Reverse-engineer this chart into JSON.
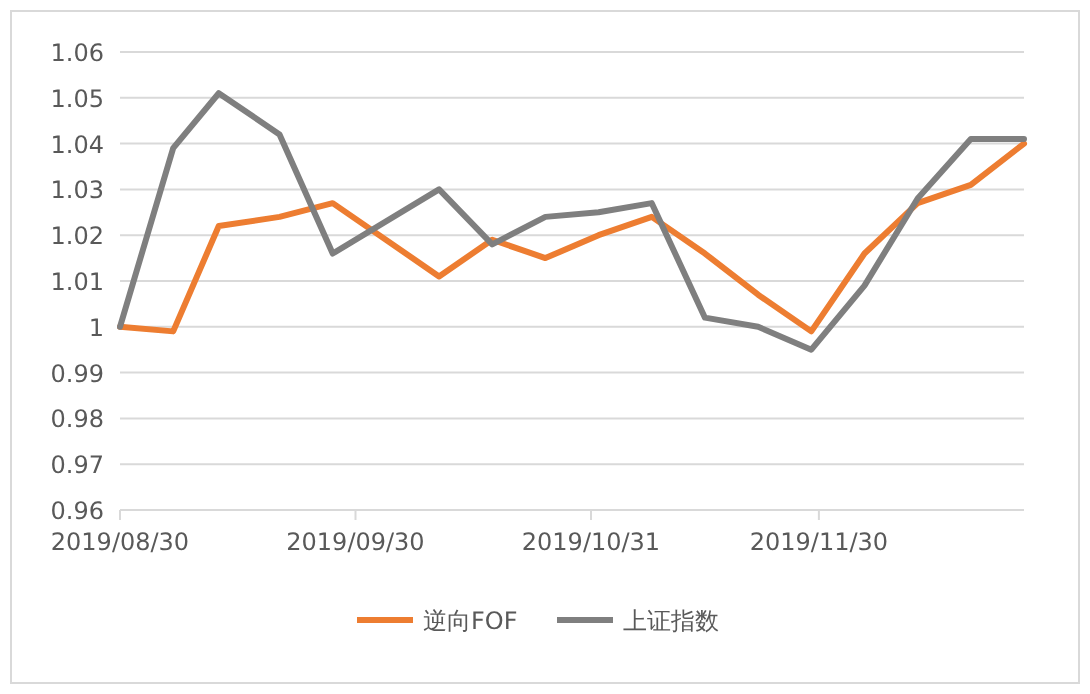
{
  "chart_data": {
    "type": "line",
    "x": [
      "2019-08-30",
      "2019-09-06",
      "2019-09-12",
      "2019-09-20",
      "2019-09-27",
      "2019-10-11",
      "2019-10-18",
      "2019-10-25",
      "2019-11-01",
      "2019-11-08",
      "2019-11-15",
      "2019-11-22",
      "2019-11-29",
      "2019-12-06",
      "2019-12-13",
      "2019-12-20",
      "2019-12-27"
    ],
    "series": [
      {
        "name": "逆向FOF",
        "color": "#ed7d31",
        "values": [
          1.0,
          0.999,
          1.022,
          1.024,
          1.027,
          1.011,
          1.019,
          1.015,
          1.02,
          1.024,
          1.016,
          1.007,
          0.999,
          1.016,
          1.027,
          1.031,
          1.04
        ]
      },
      {
        "name": "上证指数",
        "color": "#7f7f7f",
        "values": [
          1.0,
          1.039,
          1.051,
          1.042,
          1.016,
          1.03,
          1.018,
          1.024,
          1.025,
          1.027,
          1.002,
          1.0,
          0.995,
          1.009,
          1.028,
          1.041,
          1.041
        ]
      }
    ],
    "xlim": [
      "2019-08-30",
      "2019-12-27"
    ],
    "xticks": [
      {
        "value": "2019-08-30",
        "label": "2019/08/30"
      },
      {
        "value": "2019-09-30",
        "label": "2019/09/30"
      },
      {
        "value": "2019-10-31",
        "label": "2019/10/31"
      },
      {
        "value": "2019-11-30",
        "label": "2019/11/30"
      }
    ],
    "ylim": [
      0.96,
      1.06
    ],
    "yticks": [
      0.96,
      0.97,
      0.98,
      0.99,
      1,
      1.01,
      1.02,
      1.03,
      1.04,
      1.05,
      1.06
    ],
    "grid": "y",
    "legend": "bottom",
    "marker": "none",
    "line_style": "solid"
  }
}
